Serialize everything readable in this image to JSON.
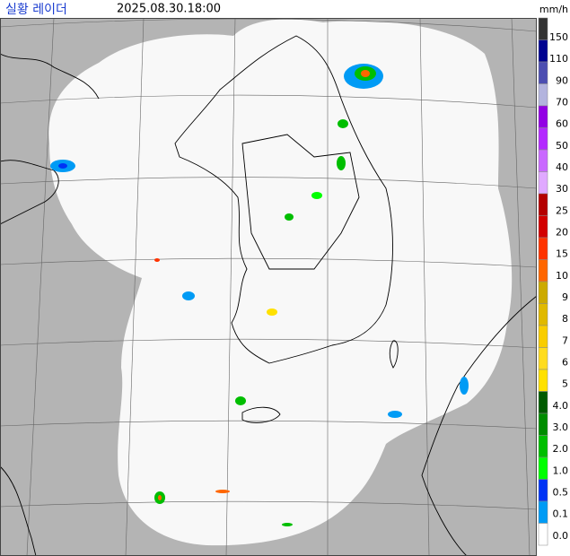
{
  "header": {
    "title": "실황 레이더",
    "timestamp": "2025.08.30.18:00",
    "unit": "mm/h"
  },
  "legend": [
    {
      "label": "150",
      "color": "#333333"
    },
    {
      "label": "110",
      "color": "#000390"
    },
    {
      "label": "90",
      "color": "#4c4eb1"
    },
    {
      "label": "70",
      "color": "#b3b4de"
    },
    {
      "label": "60",
      "color": "#9300e4"
    },
    {
      "label": "50",
      "color": "#b329ff"
    },
    {
      "label": "40",
      "color": "#c969ff"
    },
    {
      "label": "30",
      "color": "#e0a9ff"
    },
    {
      "label": "25",
      "color": "#b40000"
    },
    {
      "label": "20",
      "color": "#d20000"
    },
    {
      "label": "15",
      "color": "#ff3300"
    },
    {
      "label": "10",
      "color": "#ff6600"
    },
    {
      "label": "9",
      "color": "#ccaa00"
    },
    {
      "label": "8",
      "color": "#e0b900"
    },
    {
      "label": "7",
      "color": "#f9cd00"
    },
    {
      "label": "6",
      "color": "#ffdc1f"
    },
    {
      "label": "5",
      "color": "#ffe100"
    },
    {
      "label": "4.0",
      "color": "#005a00"
    },
    {
      "label": "3.0",
      "color": "#008c00"
    },
    {
      "label": "2.0",
      "color": "#00be00"
    },
    {
      "label": "1.0",
      "color": "#00ff00"
    },
    {
      "label": "0.5",
      "color": "#0033f5"
    },
    {
      "label": "0.1",
      "color": "#009bf5"
    },
    {
      "label": "0.0",
      "color": "#ffffff"
    }
  ]
}
